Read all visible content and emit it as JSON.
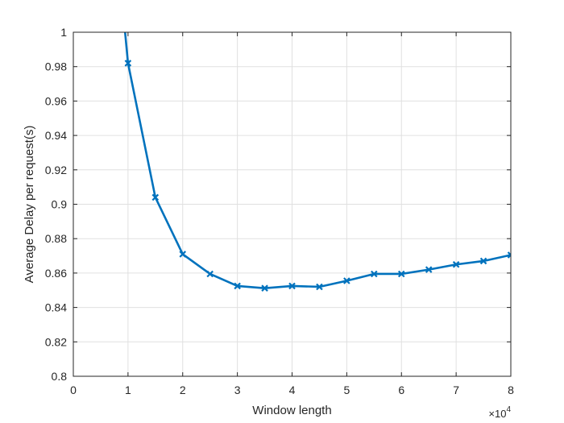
{
  "chart_data": {
    "type": "line",
    "title": "",
    "xlabel": "Window length",
    "ylabel": "Average Delay per request(s)",
    "x_multiplier_label": "×10",
    "x_multiplier_exponent": "4",
    "xlim": [
      0,
      8
    ],
    "ylim": [
      0.8,
      1.0
    ],
    "xticks": [
      0,
      1,
      2,
      3,
      4,
      5,
      6,
      7,
      8
    ],
    "xtick_labels": [
      "0",
      "1",
      "2",
      "3",
      "4",
      "5",
      "6",
      "7",
      "8"
    ],
    "yticks": [
      0.8,
      0.82,
      0.84,
      0.86,
      0.88,
      0.9,
      0.92,
      0.94,
      0.96,
      0.98,
      1.0
    ],
    "ytick_labels": [
      "0.8",
      "0.82",
      "0.84",
      "0.86",
      "0.88",
      "0.9",
      "0.92",
      "0.94",
      "0.96",
      "0.98",
      "1"
    ],
    "grid": true,
    "colors": {
      "series": "#0072BD",
      "grid": "#e0e0e0",
      "axis": "#262626"
    },
    "series": [
      {
        "marker": "x",
        "x": [
          0.5,
          1.0,
          1.5,
          2.0,
          2.5,
          3.0,
          3.5,
          4.0,
          4.5,
          5.0,
          5.5,
          6.0,
          6.5,
          7.0,
          7.5,
          8.0
        ],
        "values": [
          1.15,
          0.982,
          0.904,
          0.871,
          0.8595,
          0.8525,
          0.8512,
          0.8525,
          0.852,
          0.8555,
          0.8595,
          0.8595,
          0.862,
          0.865,
          0.867,
          0.8705
        ],
        "marker_indices_from": 1
      }
    ]
  }
}
